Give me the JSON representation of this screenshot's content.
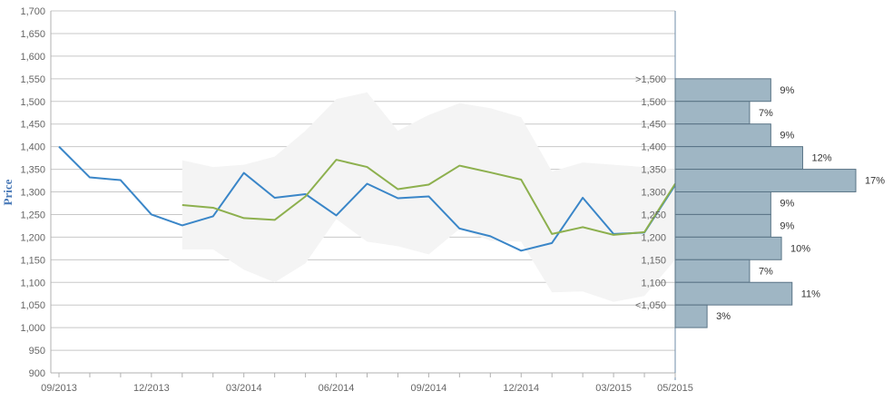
{
  "chart_data": {
    "type": "line",
    "ylabel": "Price",
    "ylim": [
      900,
      1700
    ],
    "y_ticks": [
      "900",
      "950",
      "1,000",
      "1,050",
      "1,100",
      "1,150",
      "1,200",
      "1,250",
      "1,300",
      "1,350",
      "1,400",
      "1,450",
      "1,500",
      "1,550",
      "1,600",
      "1,650",
      "1,700"
    ],
    "x_ticks": [
      "09/2013",
      "12/2013",
      "03/2014",
      "06/2014",
      "09/2014",
      "12/2014",
      "03/2015",
      "05/2015"
    ],
    "grid": true,
    "colors": {
      "blue_series": "#3a86c8",
      "green_series": "#8db04e",
      "band": "#f4f4f4",
      "histogram": "#9fb6c4",
      "grid": "#c8c8c8"
    },
    "series": [
      {
        "x": [
          "2013-09",
          "2013-10",
          "2013-11",
          "2013-12",
          "2014-01",
          "2014-02",
          "2014-03",
          "2014-04",
          "2014-05",
          "2014-06",
          "2014-07",
          "2014-08",
          "2014-09",
          "2014-10",
          "2014-11",
          "2014-12",
          "2015-01",
          "2015-02",
          "2015-03",
          "2015-04",
          "2015-05"
        ],
        "values": [
          1400,
          1332,
          1326,
          1250,
          1226,
          1246,
          1342,
          1287,
          1295,
          1248,
          1318,
          1286,
          1290,
          1219,
          1202,
          1170,
          1187,
          1287,
          1207,
          1210,
          1315
        ]
      },
      {
        "x": [
          "2014-01",
          "2014-02",
          "2014-03",
          "2014-04",
          "2014-05",
          "2014-06",
          "2014-07",
          "2014-08",
          "2014-09",
          "2014-10",
          "2014-11",
          "2014-12",
          "2015-01",
          "2015-02",
          "2015-03",
          "2015-04",
          "2015-05"
        ],
        "values": [
          1271,
          1265,
          1242,
          1238,
          1290,
          1371,
          1355,
          1306,
          1316,
          1358,
          1343,
          1327,
          1207,
          1222,
          1205,
          1211,
          1318
        ]
      }
    ],
    "band": {
      "x": [
        "2014-01",
        "2014-02",
        "2014-03",
        "2014-04",
        "2014-05",
        "2014-06",
        "2014-07",
        "2014-08",
        "2014-09",
        "2014-10",
        "2014-11",
        "2014-12",
        "2015-01",
        "2015-02",
        "2015-03",
        "2015-04",
        "2015-05"
      ],
      "upper": [
        1370,
        1355,
        1360,
        1378,
        1435,
        1505,
        1520,
        1435,
        1470,
        1496,
        1485,
        1465,
        1345,
        1365,
        1360,
        1355,
        1350
      ],
      "lower": [
        1173,
        1173,
        1128,
        1100,
        1142,
        1240,
        1190,
        1180,
        1162,
        1218,
        1192,
        1190,
        1078,
        1080,
        1057,
        1070,
        1150
      ]
    },
    "histogram": {
      "bins": [
        ">1,500",
        "1,500",
        "1,450",
        "1,400",
        "1,350",
        "1,300",
        "1,250",
        "1,200",
        "1,150",
        "1,100",
        "<1,050"
      ],
      "percent": [
        9,
        7,
        9,
        12,
        17,
        9,
        9,
        10,
        7,
        11,
        3
      ],
      "labels": [
        "9%",
        "7%",
        "9%",
        "12%",
        "17%",
        "9%",
        "9%",
        "10%",
        "7%",
        "11%",
        "3%"
      ]
    }
  }
}
